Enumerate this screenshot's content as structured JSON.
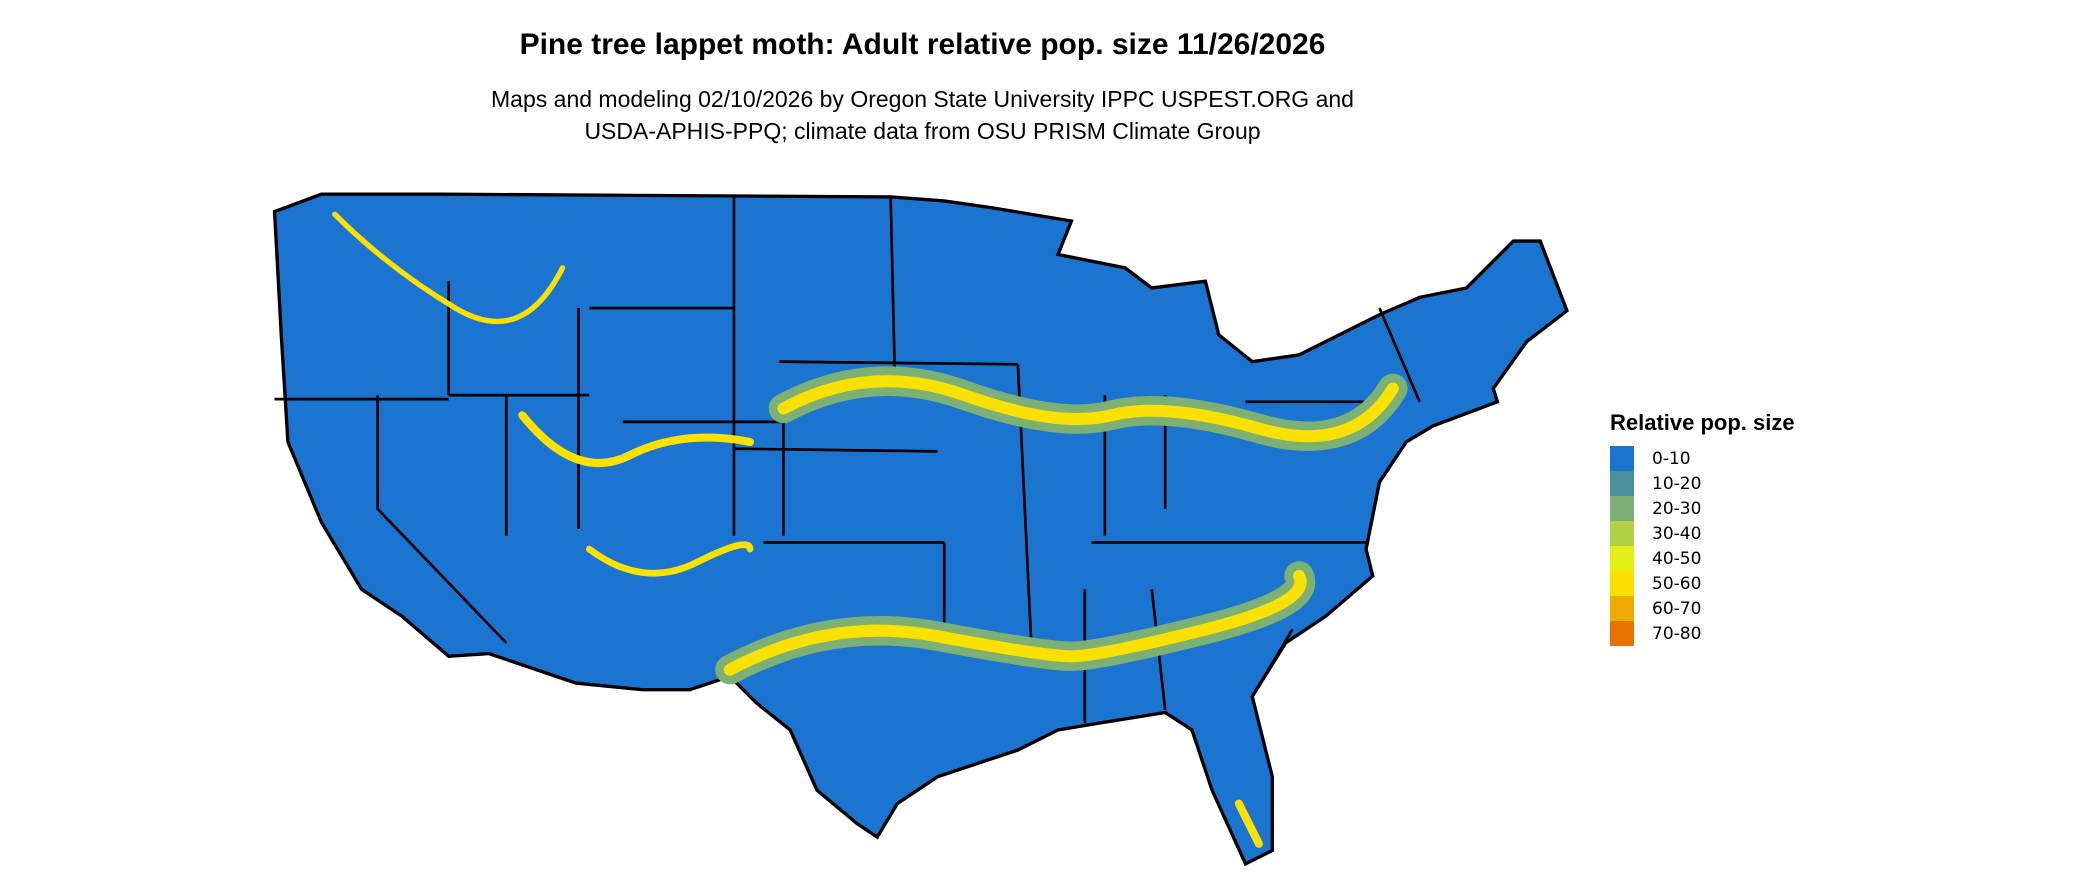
{
  "title": "Pine tree lappet moth: Adult relative pop. size 11/26/2026",
  "subtitle_line1": "Maps and modeling 02/10/2026 by Oregon State University IPPC USPEST.ORG and",
  "subtitle_line2": "USDA-APHIS-PPQ; climate data from OSU PRISM Climate Group",
  "legend": {
    "title": "Relative pop. size",
    "items": [
      {
        "label": "0-10",
        "color": "#1b75d0"
      },
      {
        "label": "10-20",
        "color": "#4a909c"
      },
      {
        "label": "20-30",
        "color": "#7db074"
      },
      {
        "label": "30-40",
        "color": "#b2d046"
      },
      {
        "label": "40-50",
        "color": "#e3ee16"
      },
      {
        "label": "50-60",
        "color": "#fbe100"
      },
      {
        "label": "60-70",
        "color": "#eeaa00"
      },
      {
        "label": "70-80",
        "color": "#e57200"
      }
    ]
  }
}
